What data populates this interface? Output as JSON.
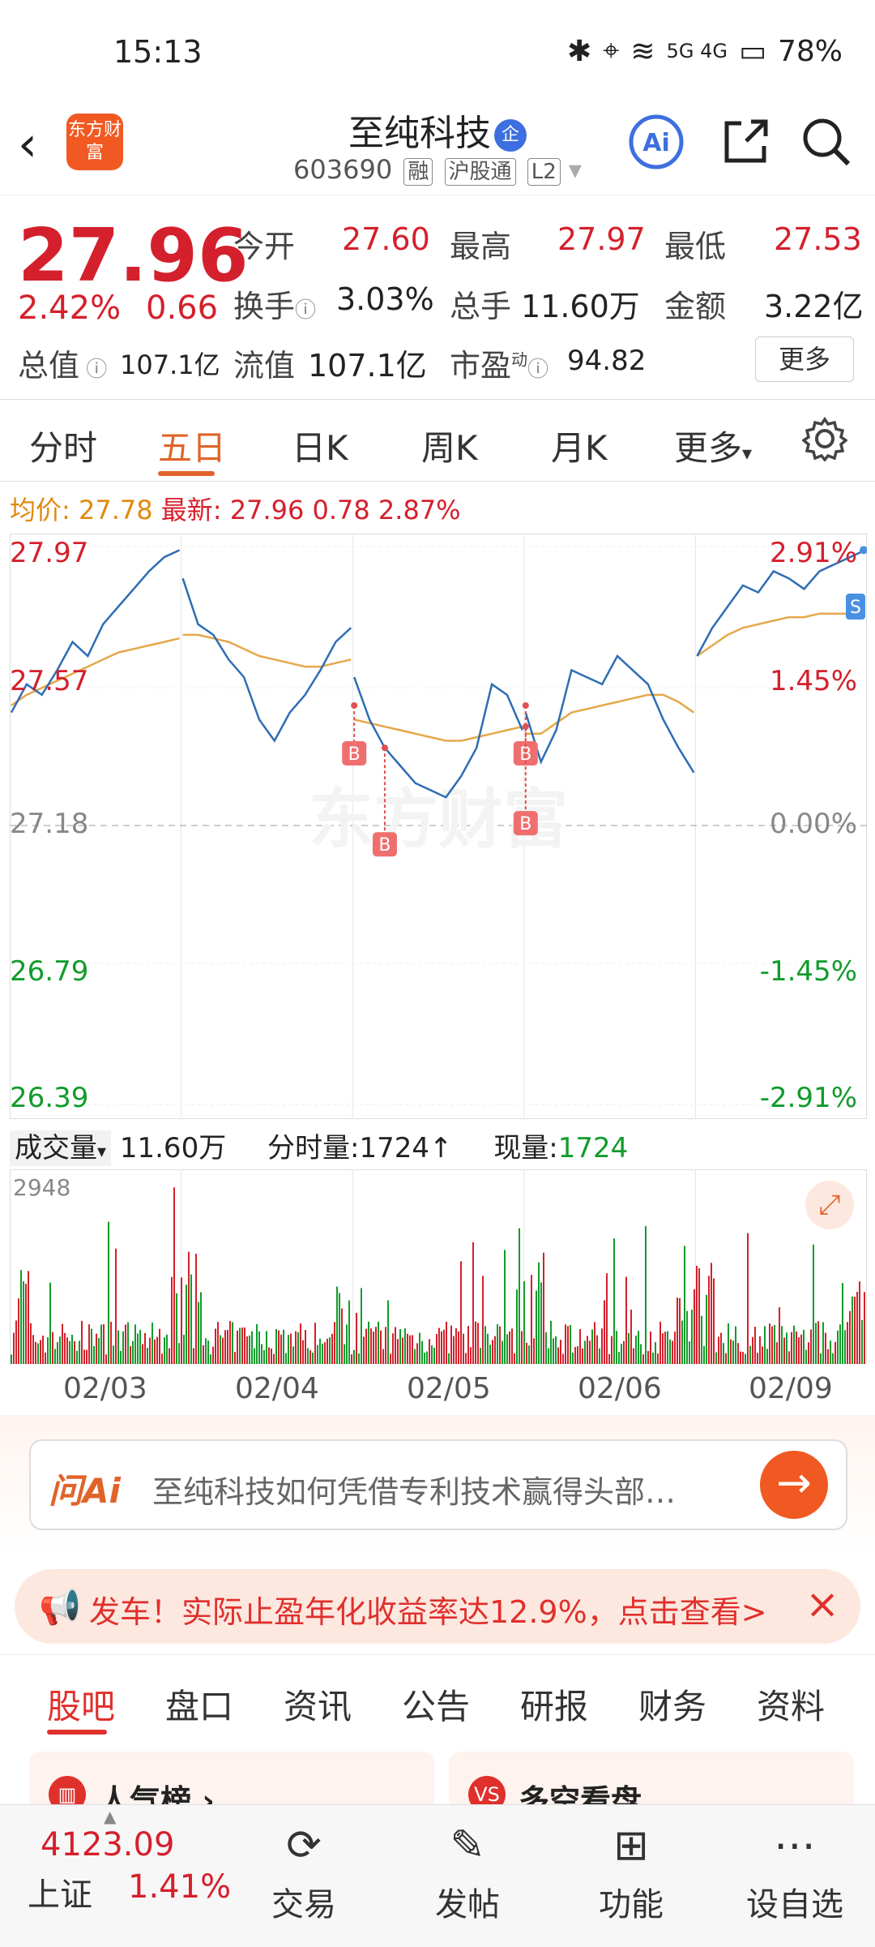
{
  "status_bar": {
    "time": "15:13",
    "network": "5G 4G",
    "battery": "78%"
  },
  "header": {
    "logo_text": "东方财富",
    "stock_name": "至纯科技",
    "badge": "企",
    "code": "603690",
    "tags": [
      "融",
      "沪股通",
      "L2"
    ]
  },
  "quote": {
    "price": "27.96",
    "change_pct": "2.42%",
    "change": "0.66",
    "open_label": "今开",
    "open": "27.60",
    "high_label": "最高",
    "high": "27.97",
    "low_label": "最低",
    "low": "27.53",
    "turnover_label": "换手",
    "turnover": "3.03%",
    "volume_label": "总手",
    "volume": "11.60万",
    "amount_label": "金额",
    "amount": "3.22亿",
    "mcap_label": "总值",
    "mcap": "107.1亿",
    "float_label": "流值",
    "float": "107.1亿",
    "pe_label": "市盈",
    "pe_sup": "动",
    "pe": "94.82",
    "more": "更多"
  },
  "tabs": [
    "分时",
    "五日",
    "日K",
    "周K",
    "月K",
    "更多"
  ],
  "active_tab": "五日",
  "chart_header": {
    "avg_label": "均价:",
    "avg": "27.78",
    "latest_label": "最新:",
    "latest": "27.96",
    "chg": "0.78",
    "chg_pct": "2.87%"
  },
  "chart_data": {
    "type": "line",
    "y_left": [
      "27.97",
      "27.57",
      "27.18",
      "26.79",
      "26.39"
    ],
    "y_right": [
      "2.91%",
      "1.45%",
      "0.00%",
      "-1.45%",
      "-2.91%"
    ],
    "x_labels": [
      "02/03",
      "02/04",
      "02/05",
      "02/06",
      "02/09"
    ],
    "ylim": [
      26.39,
      27.97
    ],
    "days": [
      {
        "price": [
          27.5,
          27.58,
          27.55,
          27.62,
          27.7,
          27.66,
          27.75,
          27.8,
          27.85,
          27.9,
          27.94,
          27.96
        ],
        "avg": [
          27.52,
          27.55,
          27.57,
          27.59,
          27.61,
          27.63,
          27.65,
          27.67,
          27.68,
          27.69,
          27.7,
          27.71
        ]
      },
      {
        "price": [
          27.88,
          27.75,
          27.72,
          27.65,
          27.6,
          27.48,
          27.42,
          27.5,
          27.55,
          27.62,
          27.7,
          27.74
        ],
        "avg": [
          27.72,
          27.72,
          27.71,
          27.7,
          27.68,
          27.66,
          27.65,
          27.64,
          27.63,
          27.63,
          27.64,
          27.65
        ]
      },
      {
        "price": [
          27.6,
          27.48,
          27.4,
          27.35,
          27.3,
          27.28,
          27.26,
          27.32,
          27.4,
          27.58,
          27.55,
          27.45
        ],
        "avg": [
          27.48,
          27.47,
          27.46,
          27.45,
          27.44,
          27.43,
          27.42,
          27.42,
          27.43,
          27.44,
          27.45,
          27.46
        ]
      },
      {
        "price": [
          27.5,
          27.36,
          27.45,
          27.62,
          27.6,
          27.58,
          27.66,
          27.62,
          27.58,
          27.48,
          27.4,
          27.33
        ],
        "avg": [
          27.44,
          27.44,
          27.47,
          27.5,
          27.51,
          27.52,
          27.53,
          27.54,
          27.55,
          27.55,
          27.53,
          27.5
        ]
      },
      {
        "price": [
          27.66,
          27.74,
          27.8,
          27.86,
          27.84,
          27.9,
          27.88,
          27.85,
          27.9,
          27.92,
          27.94,
          27.96
        ],
        "avg": [
          27.66,
          27.69,
          27.72,
          27.74,
          27.75,
          27.76,
          27.77,
          27.77,
          27.78,
          27.78,
          27.78,
          27.78
        ]
      }
    ],
    "buy_marks": [
      {
        "day": 2,
        "index": 0,
        "price": 27.52
      },
      {
        "day": 2,
        "index": 2,
        "price": 27.4
      },
      {
        "day": 3,
        "index": 0,
        "price": 27.52
      },
      {
        "day": 3,
        "index": 0,
        "price": 27.46
      }
    ],
    "vol_max": "2948"
  },
  "volume_header": {
    "label": "成交量",
    "total": "11.60万",
    "tick_label": "分时量:",
    "tick": "1724↑",
    "now_label": "现量:",
    "now": "1724"
  },
  "ai": {
    "logo": "问Ai",
    "prompt": "至纯科技如何凭借专利技术赢得头部…"
  },
  "banner": {
    "text": "发车！实际止盈年化收益率达12.9%，点击查看>"
  },
  "bottom_tabs": [
    "股吧",
    "盘口",
    "资讯",
    "公告",
    "研报",
    "财务",
    "资料"
  ],
  "cards": [
    {
      "label": "人气榜"
    },
    {
      "label": "多空看盘"
    }
  ],
  "index": {
    "value": "4123.09",
    "name": "上证",
    "pct": "1.41%"
  },
  "nav": [
    {
      "label": "交易"
    },
    {
      "label": "发帖"
    },
    {
      "label": "功能"
    },
    {
      "label": "设自选"
    }
  ],
  "colors": {
    "up": "#d4202c",
    "down": "#119c2b",
    "accent": "#e0642a",
    "line": "#2e6db4",
    "avg": "#e5a84b"
  }
}
